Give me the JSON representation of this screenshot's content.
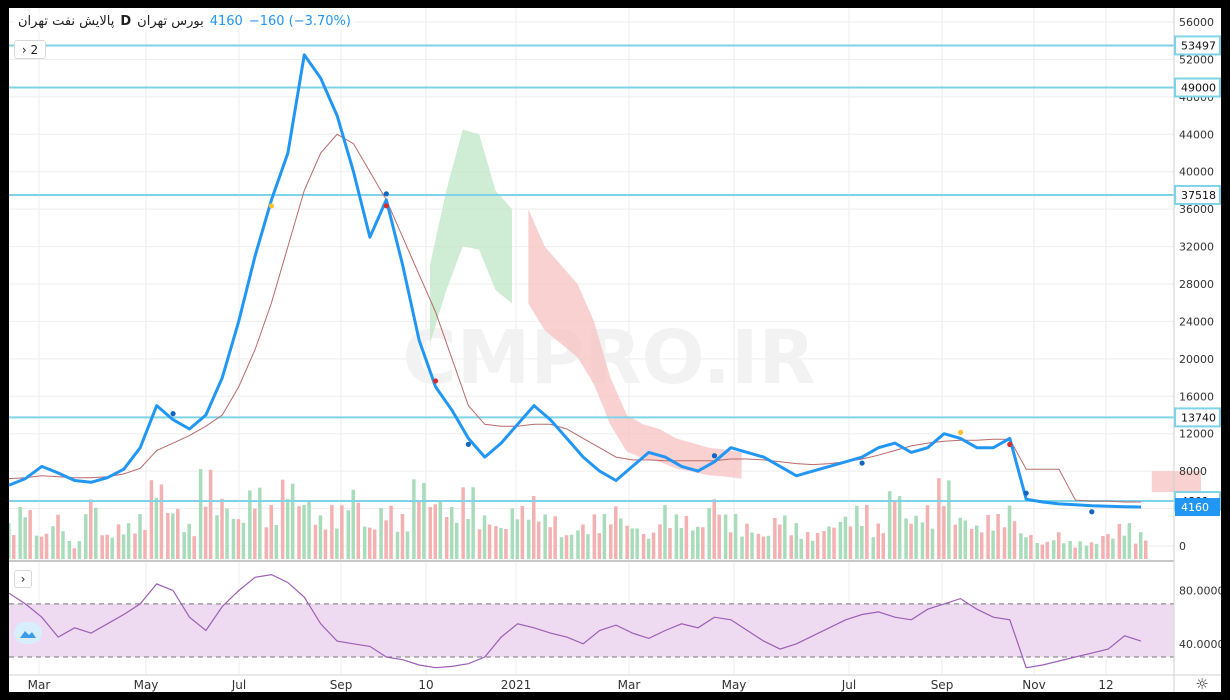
{
  "legend": {
    "symbol": "پالایش نفت تهران",
    "interval": "D",
    "exchange": "بورس تهران",
    "last": "4160",
    "change": "−160 (−3.70%)"
  },
  "toolbar": {
    "indicator_count": "2"
  },
  "watermark": "CMPRO.IR",
  "colors": {
    "price": "#2196f3",
    "level": "#7fd3e6",
    "kijun": "#b86a6a",
    "cloud_bull": "#bfe6c7",
    "cloud_bear": "#f7c1c1",
    "vol_up": "#a9dcbb",
    "vol_down": "#f3b1b1",
    "rsi": "#9c5fb5",
    "rsi_band": "#eedbf2"
  },
  "chart_data": [
    {
      "type": "line",
      "x_ticks": [
        "Mar",
        "May",
        "Jul",
        "Sep",
        "10",
        "2021",
        "Mar",
        "May",
        "Jul",
        "Sep",
        "Nov",
        "12"
      ],
      "y_ticks": [
        0,
        4000,
        8000,
        12000,
        16000,
        20000,
        24000,
        28000,
        32000,
        36000,
        40000,
        44000,
        48000,
        52000,
        56000
      ],
      "ylim": [
        -1500,
        57500
      ],
      "horizontal_levels": [
        53497,
        49000,
        37518,
        13740,
        4801
      ],
      "last_price": 4160,
      "series": [
        {
          "values": [
            6500,
            7200,
            8500,
            7800,
            7000,
            6800,
            7300,
            8200,
            10500,
            15000,
            13500,
            12500,
            14000,
            18000,
            24000,
            31000,
            37000,
            42000,
            52500,
            50000,
            46000,
            40000,
            33000,
            37000,
            30000,
            22000,
            17000,
            14500,
            11500,
            9500,
            11000,
            13000,
            15000,
            13500,
            11500,
            9500,
            8000,
            7000,
            8500,
            10000,
            9500,
            8500,
            8000,
            9000,
            10500,
            10000,
            9500,
            8500,
            7500,
            8000,
            8500,
            9000,
            9500,
            10500,
            11000,
            10000,
            10500,
            12000,
            11500,
            10500,
            10500,
            11500,
            5000,
            4700,
            4500,
            4400,
            4300,
            4250,
            4200,
            4160
          ]
        },
        {
          "values": [
            7200,
            7300,
            7500,
            7400,
            7300,
            7300,
            7400,
            7700,
            8300,
            10200,
            11000,
            11800,
            12800,
            14000,
            17000,
            21000,
            26000,
            32000,
            38000,
            42000,
            44000,
            43000,
            40000,
            37000,
            33000,
            29000,
            25000,
            20000,
            15000,
            13000,
            12800,
            12800,
            13000,
            13000,
            12500,
            11500,
            10500,
            9500,
            9200,
            9200,
            9100,
            9100,
            9100,
            9100,
            9300,
            9300,
            9200,
            9000,
            8800,
            8700,
            8800,
            9000,
            9300,
            9700,
            10200,
            10700,
            11000,
            11200,
            11300,
            11300,
            11400,
            11400,
            8200,
            8200,
            8200,
            4900,
            4800,
            4800,
            4700,
            4700
          ]
        }
      ],
      "cloud_bull_upper": [
        null,
        null,
        null,
        null,
        null,
        null,
        null,
        null,
        null,
        null,
        null,
        null,
        null,
        null,
        null,
        null,
        null,
        null,
        null,
        null,
        null,
        null,
        30000,
        38000,
        44500,
        44000,
        38000,
        36000,
        null,
        null,
        null,
        null,
        null,
        null,
        null,
        null,
        null,
        null,
        null,
        null,
        null,
        null,
        null,
        null,
        null,
        null,
        null,
        null,
        null,
        null,
        null,
        null,
        null,
        null,
        null,
        null,
        null,
        null,
        null,
        null,
        null,
        null,
        null,
        null,
        null,
        null,
        null,
        null,
        null,
        null
      ],
      "cloud_bear_upper": [
        null,
        null,
        null,
        null,
        null,
        null,
        null,
        null,
        null,
        null,
        null,
        null,
        null,
        null,
        null,
        null,
        null,
        null,
        null,
        null,
        null,
        null,
        null,
        null,
        null,
        null,
        null,
        null,
        36000,
        32000,
        30000,
        28000,
        24000,
        18000,
        14000,
        13000,
        12500,
        11500,
        11000,
        10500,
        10300,
        10000,
        null,
        null,
        null,
        null,
        null,
        null,
        null,
        null,
        null,
        null,
        null,
        null,
        null,
        null,
        null,
        null,
        null,
        null,
        null,
        null,
        null,
        null,
        null,
        null,
        8000,
        8000,
        8000,
        8000
      ]
    },
    {
      "type": "bar",
      "name": "volume",
      "values": [
        0.4,
        0.6,
        0.3,
        0.5,
        0.2,
        0.7,
        0.3,
        0.4,
        0.5,
        0.9,
        0.6,
        0.4,
        1.0,
        0.7,
        0.5,
        0.8,
        0.6,
        0.9,
        0.7,
        0.5,
        0.6,
        0.8,
        0.4,
        0.6,
        0.5,
        0.9,
        0.7,
        0.6,
        0.8,
        0.5,
        0.4,
        0.6,
        0.7,
        0.5,
        0.3,
        0.4,
        0.5,
        0.6,
        0.4,
        0.3,
        0.6,
        0.5,
        0.4,
        0.7,
        0.5,
        0.4,
        0.3,
        0.5,
        0.4,
        0.3,
        0.4,
        0.5,
        0.6,
        0.4,
        0.8,
        0.5,
        0.6,
        0.9,
        0.5,
        0.4,
        0.5,
        0.6,
        0.3,
        0.2,
        0.3,
        0.2,
        0.2,
        0.3,
        0.4,
        0.3
      ]
    },
    {
      "type": "line",
      "name": "RSI",
      "y_ticks": [
        40,
        80
      ],
      "y_tick_labels": [
        "40.0000",
        "80.0000"
      ],
      "bands": [
        30,
        70
      ],
      "ylim": [
        18,
        100
      ],
      "values": [
        78,
        70,
        60,
        45,
        52,
        48,
        55,
        62,
        70,
        85,
        80,
        60,
        50,
        68,
        80,
        90,
        92,
        86,
        75,
        55,
        42,
        40,
        38,
        30,
        28,
        24,
        22,
        23,
        25,
        30,
        45,
        55,
        52,
        48,
        45,
        40,
        50,
        54,
        48,
        44,
        50,
        55,
        52,
        60,
        58,
        50,
        42,
        36,
        40,
        46,
        52,
        58,
        62,
        64,
        60,
        58,
        66,
        70,
        74,
        66,
        60,
        58,
        22,
        24,
        27,
        30,
        33,
        36,
        46,
        42
      ]
    }
  ]
}
